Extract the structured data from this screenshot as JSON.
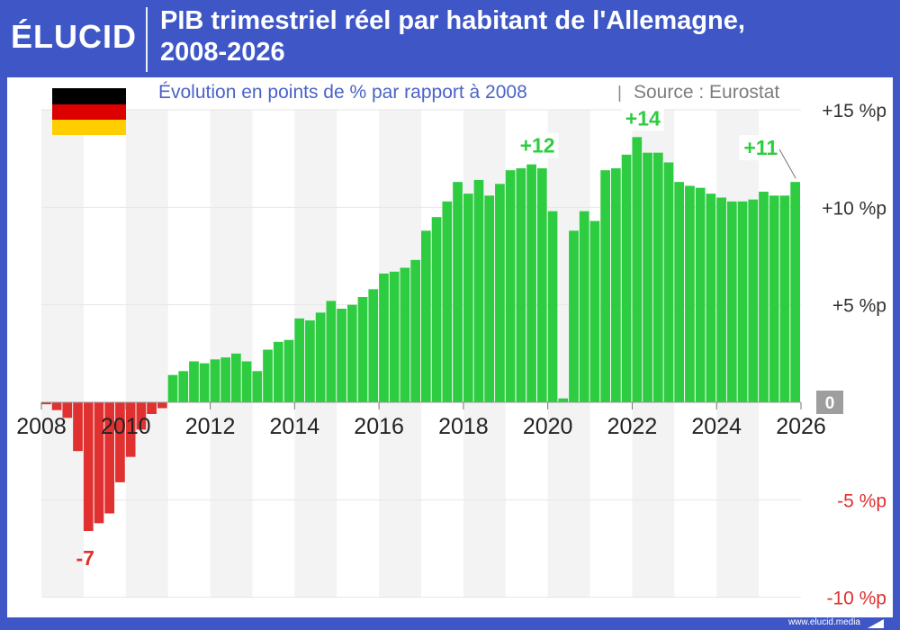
{
  "header": {
    "logo": "ÉLUCID",
    "title_line1": "PIB trimestriel réel par habitant de l'Allemagne,",
    "title_line2": "2008-2026"
  },
  "footer": {
    "site": "www.elucid.media"
  },
  "colors": {
    "frame": "#3f57c6",
    "positive": "#2ecc40",
    "negative": "#e03030",
    "zero_badge": "#9e9e9e",
    "subtitle": "#4a63c8"
  },
  "icons": {
    "flag": "germany-flag-icon"
  },
  "chart_data": {
    "type": "bar",
    "subtitle": "Évolution en points de % par rapport à 2008",
    "source": "Source : Eurostat",
    "xlim": [
      2008,
      2026
    ],
    "ylim": [
      -10,
      15
    ],
    "x_ticks": [
      "2008",
      "2010",
      "2012",
      "2014",
      "2016",
      "2018",
      "2020",
      "2022",
      "2024",
      "2026"
    ],
    "y_ticks": [
      {
        "value": 15,
        "label": "+15 %p"
      },
      {
        "value": 10,
        "label": "+10 %p"
      },
      {
        "value": 5,
        "label": "+5 %p"
      },
      {
        "value": 0,
        "label": "0"
      },
      {
        "value": -5,
        "label": "-5 %p"
      },
      {
        "value": -10,
        "label": "-10 %p"
      }
    ],
    "grid": true,
    "x": [
      "2008-Q1",
      "2008-Q2",
      "2008-Q3",
      "2008-Q4",
      "2009-Q1",
      "2009-Q2",
      "2009-Q3",
      "2009-Q4",
      "2010-Q1",
      "2010-Q2",
      "2010-Q3",
      "2010-Q4",
      "2011-Q1",
      "2011-Q2",
      "2011-Q3",
      "2011-Q4",
      "2012-Q1",
      "2012-Q2",
      "2012-Q3",
      "2012-Q4",
      "2013-Q1",
      "2013-Q2",
      "2013-Q3",
      "2013-Q4",
      "2014-Q1",
      "2014-Q2",
      "2014-Q3",
      "2014-Q4",
      "2015-Q1",
      "2015-Q2",
      "2015-Q3",
      "2015-Q4",
      "2016-Q1",
      "2016-Q2",
      "2016-Q3",
      "2016-Q4",
      "2017-Q1",
      "2017-Q2",
      "2017-Q3",
      "2017-Q4",
      "2018-Q1",
      "2018-Q2",
      "2018-Q3",
      "2018-Q4",
      "2019-Q1",
      "2019-Q2",
      "2019-Q3",
      "2019-Q4",
      "2020-Q1",
      "2020-Q2",
      "2020-Q3",
      "2020-Q4",
      "2021-Q1",
      "2021-Q2",
      "2021-Q3",
      "2021-Q4",
      "2022-Q1",
      "2022-Q2",
      "2022-Q3",
      "2022-Q4",
      "2023-Q1",
      "2023-Q2",
      "2023-Q3",
      "2023-Q4",
      "2024-Q1",
      "2024-Q2",
      "2024-Q3",
      "2024-Q4",
      "2025-Q1",
      "2025-Q2",
      "2025-Q3",
      "2025-Q4"
    ],
    "values": [
      -0.1,
      -0.4,
      -0.8,
      -2.5,
      -6.6,
      -6.2,
      -5.7,
      -4.1,
      -2.8,
      -1.4,
      -0.6,
      -0.3,
      1.4,
      1.6,
      2.1,
      2.0,
      2.2,
      2.3,
      2.5,
      2.1,
      1.6,
      2.7,
      3.1,
      3.2,
      4.3,
      4.2,
      4.6,
      5.2,
      4.8,
      5.0,
      5.4,
      5.8,
      6.6,
      6.7,
      6.9,
      7.3,
      8.8,
      9.5,
      10.3,
      11.3,
      10.7,
      11.4,
      10.6,
      11.2,
      11.9,
      12.0,
      12.2,
      12.0,
      9.8,
      0.2,
      8.8,
      9.8,
      9.3,
      11.9,
      12.0,
      12.7,
      13.6,
      12.8,
      12.8,
      12.3,
      11.3,
      11.1,
      11.0,
      10.7,
      10.5,
      10.3,
      10.3,
      10.4,
      10.8,
      10.6,
      10.6,
      11.3
    ],
    "annotations": [
      {
        "label": "-7",
        "at": "2009-Q1",
        "value": -6.6
      },
      {
        "label": "+12",
        "at": "2019-Q3",
        "value": 12.2
      },
      {
        "label": "+14",
        "at": "2022-Q1",
        "value": 13.6
      },
      {
        "label": "+11",
        "at": "2025-Q4",
        "value": 11.3
      }
    ]
  }
}
